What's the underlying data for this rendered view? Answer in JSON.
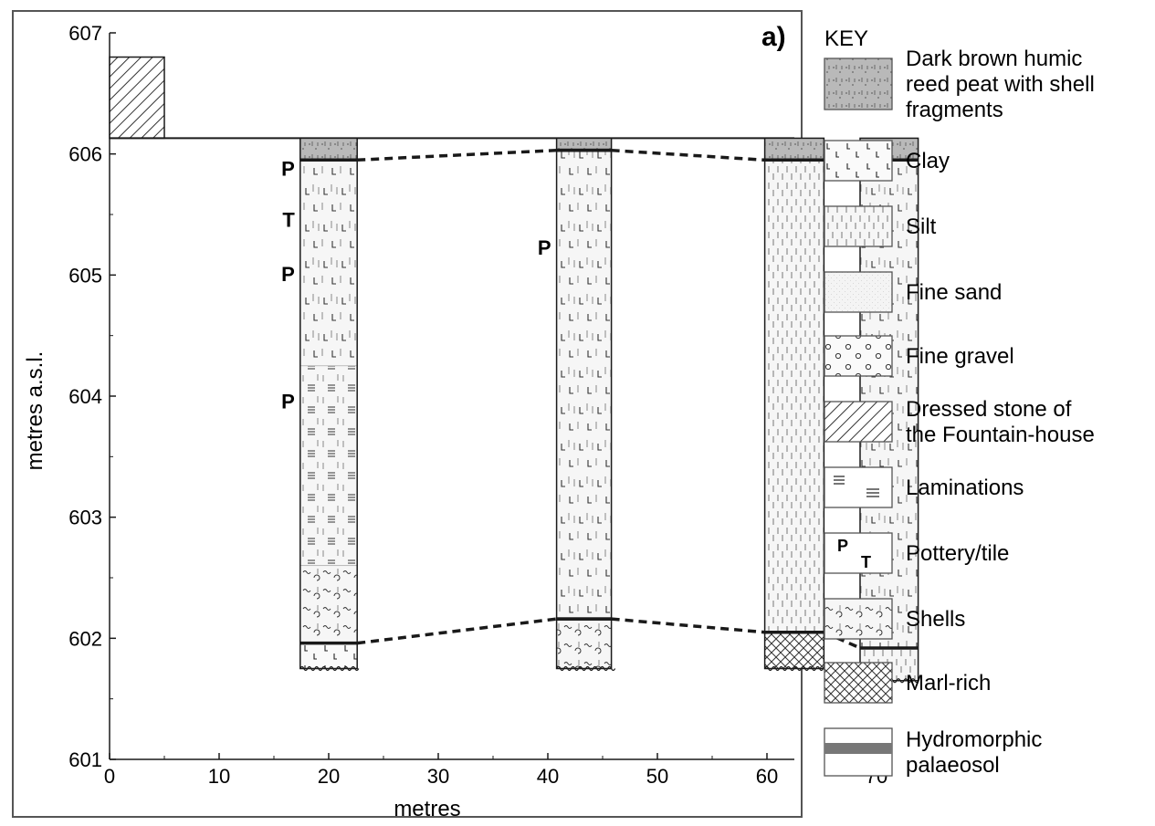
{
  "panel_label": "a)",
  "colors": {
    "frame": "#555555",
    "peat": "#b9b9b9",
    "column_fill": "#f4f4f4",
    "ink": "#1a1a1a",
    "palaeosol_band": "#777777"
  },
  "chart_data": {
    "type": "stratigraphic-section",
    "xlabel": "metres",
    "ylabel": "metres a.s.l.",
    "xlim": [
      0,
      74
    ],
    "ylim": [
      601,
      607
    ],
    "xticks": [
      "0",
      "10",
      "20",
      "30",
      "40",
      "50",
      "60",
      "70"
    ],
    "yticks": [
      "601",
      "602",
      "603",
      "604",
      "605",
      "606",
      "607"
    ],
    "ground_surface": 606.13,
    "fountain_house": {
      "x": [
        0,
        5
      ],
      "top": 606.8,
      "bottom": 606.13,
      "pattern": "dressed-stone"
    },
    "cores": [
      {
        "id": "core-1",
        "x": [
          17.4,
          22.6
        ],
        "top": 606.13,
        "bottom": 601.75,
        "palaeosol": 601.96,
        "units": [
          {
            "top": 606.13,
            "bottom": 605.95,
            "pattern": "peat"
          },
          {
            "top": 605.95,
            "bottom": 604.25,
            "pattern": "clay-silt"
          },
          {
            "top": 604.25,
            "bottom": 602.6,
            "pattern": "silt-laminated"
          },
          {
            "top": 602.6,
            "bottom": 601.96,
            "pattern": "shells"
          },
          {
            "top": 601.96,
            "bottom": 601.75,
            "pattern": "clay-base"
          }
        ],
        "markers": [
          {
            "label": "P",
            "y": 605.88
          },
          {
            "label": "T",
            "y": 605.46
          },
          {
            "label": "P",
            "y": 605.01
          },
          {
            "label": "P",
            "y": 603.96
          }
        ]
      },
      {
        "id": "core-2",
        "x": [
          40.8,
          45.8
        ],
        "top": 606.13,
        "bottom": 601.75,
        "palaeosol": 602.16,
        "units": [
          {
            "top": 606.13,
            "bottom": 606.03,
            "pattern": "peat"
          },
          {
            "top": 606.03,
            "bottom": 602.16,
            "pattern": "clay-silt"
          },
          {
            "top": 602.16,
            "bottom": 601.75,
            "pattern": "shells"
          }
        ],
        "markers": [
          {
            "label": "P",
            "y": 605.23
          }
        ]
      },
      {
        "id": "core-3",
        "x": [
          59.8,
          65.2
        ],
        "top": 606.13,
        "bottom": 601.75,
        "palaeosol": 602.05,
        "units": [
          {
            "top": 606.13,
            "bottom": 605.95,
            "pattern": "peat"
          },
          {
            "top": 605.95,
            "bottom": 602.05,
            "pattern": "silt"
          },
          {
            "top": 602.05,
            "bottom": 601.75,
            "pattern": "marl"
          }
        ],
        "markers": []
      },
      {
        "id": "core-4",
        "x": [
          68.5,
          73.8
        ],
        "top": 606.13,
        "bottom": 601.65,
        "palaeosol": 601.92,
        "units": [
          {
            "top": 606.13,
            "bottom": 605.95,
            "pattern": "peat"
          },
          {
            "top": 605.95,
            "bottom": 601.92,
            "pattern": "clay-silt"
          },
          {
            "top": 601.92,
            "bottom": 601.65,
            "pattern": "silt"
          }
        ],
        "markers": []
      }
    ],
    "correlation_lines": [
      {
        "points": [
          [
            22.6,
            605.95
          ],
          [
            40.8,
            606.03
          ],
          [
            45.8,
            606.03
          ],
          [
            59.8,
            605.95
          ],
          [
            65.2,
            605.95
          ],
          [
            68.5,
            605.95
          ]
        ]
      },
      {
        "points": [
          [
            22.6,
            601.96
          ],
          [
            40.8,
            602.16
          ],
          [
            45.8,
            602.16
          ],
          [
            59.8,
            602.05
          ],
          [
            65.2,
            602.05
          ],
          [
            68.5,
            601.92
          ]
        ]
      }
    ]
  },
  "key": {
    "title": "KEY",
    "items": [
      {
        "name": "peat",
        "lines": [
          "Dark brown humic",
          "reed peat with shell",
          "fragments"
        ]
      },
      {
        "name": "clay",
        "lines": [
          "Clay"
        ]
      },
      {
        "name": "silt",
        "lines": [
          "Silt"
        ]
      },
      {
        "name": "sand",
        "lines": [
          "Fine sand"
        ]
      },
      {
        "name": "gravel",
        "lines": [
          "Fine gravel"
        ]
      },
      {
        "name": "stone",
        "lines": [
          "Dressed stone of",
          "the Fountain-house"
        ]
      },
      {
        "name": "laminations",
        "lines": [
          "Laminations"
        ]
      },
      {
        "name": "pottery",
        "lines": [
          "Pottery/tile"
        ]
      },
      {
        "name": "shells",
        "lines": [
          "Shells"
        ]
      },
      {
        "name": "marl",
        "lines": [
          "Marl-rich"
        ]
      },
      {
        "name": "palaeosol",
        "lines": [
          "Hydromorphic",
          "palaeosol"
        ]
      }
    ]
  }
}
